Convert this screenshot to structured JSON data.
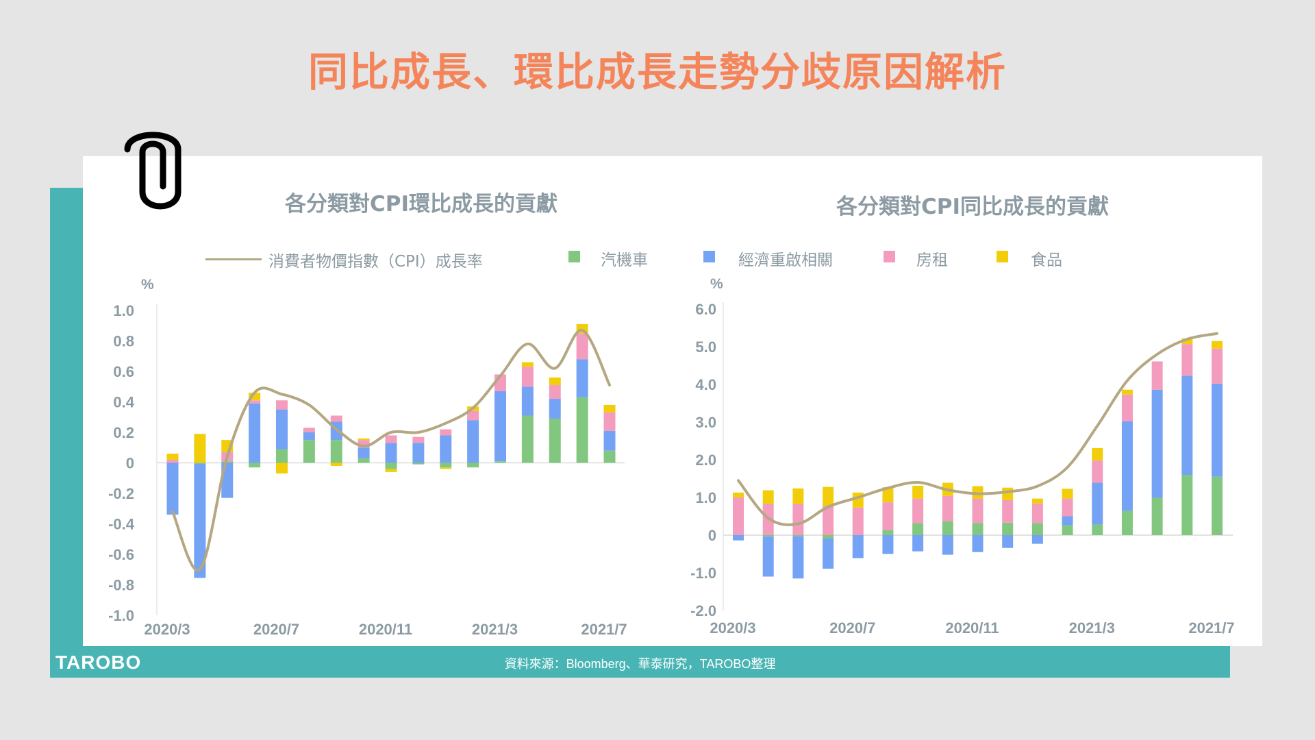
{
  "page": {
    "title": "同比成長、環比成長走勢分歧原因解析",
    "source": "資料來源：Bloomberg、華泰研究，TAROBO整理",
    "logo": "TAROBO"
  },
  "legend": {
    "line": "消費者物價指數（CPI）成長率",
    "items": [
      "汽機車",
      "經濟重啟相關",
      "房租",
      "食品"
    ]
  },
  "colors": {
    "汽機車": "#82c77f",
    "經濟重啟相關": "#74a2f5",
    "房租": "#f39cbd",
    "食品": "#f2cd0a",
    "line": "#b5a782",
    "title": "#f4845a",
    "teal": "#48b4b4",
    "axis_text": "#8c9ba3"
  },
  "chart_data": [
    {
      "type": "bar",
      "stacked": true,
      "title": "各分類對CPI環比成長的貢獻",
      "ylabel": "%",
      "ylim": [
        -1.0,
        1.0
      ],
      "yticks": [
        "1.0",
        "0.8",
        "0.6",
        "0.4",
        "0.2",
        "0",
        "-0.2",
        "-0.4",
        "-0.6",
        "-0.8",
        "-1.0"
      ],
      "ytick_values": [
        1.0,
        0.8,
        0.6,
        0.4,
        0.2,
        0,
        -0.2,
        -0.4,
        -0.6,
        -0.8,
        -1.0
      ],
      "categories": [
        "2020/3",
        "2020/4",
        "2020/5",
        "2020/6",
        "2020/7",
        "2020/8",
        "2020/9",
        "2020/10",
        "2020/11",
        "2020/12",
        "2021/1",
        "2021/2",
        "2021/3",
        "2021/4",
        "2021/5",
        "2021/6",
        "2021/7"
      ],
      "xtick_labels": [
        "2020/3",
        "2020/7",
        "2020/11",
        "2021/3",
        "2021/7"
      ],
      "xtick_indices": [
        0,
        4,
        8,
        12,
        16
      ],
      "grid": false,
      "series": [
        {
          "name": "汽機車",
          "values": [
            0,
            -0.005,
            0.01,
            -0.03,
            0.09,
            0.15,
            0.15,
            0.03,
            -0.04,
            -0.01,
            -0.03,
            -0.03,
            0.01,
            0.31,
            0.29,
            0.43,
            0.08
          ]
        },
        {
          "name": "經濟重啟相關",
          "values": [
            -0.34,
            -0.75,
            -0.23,
            0.39,
            0.26,
            0.05,
            0.12,
            0.07,
            0.13,
            0.13,
            0.18,
            0.28,
            0.46,
            0.19,
            0.13,
            0.25,
            0.13
          ]
        },
        {
          "name": "房租",
          "values": [
            0.02,
            0,
            0.06,
            0.02,
            0.06,
            0.03,
            0.04,
            0.05,
            0.05,
            0.04,
            0.04,
            0.06,
            0.11,
            0.13,
            0.09,
            0.17,
            0.12
          ]
        },
        {
          "name": "食品",
          "values": [
            0.04,
            0.19,
            0.08,
            0.05,
            -0.07,
            0,
            -0.02,
            0.01,
            -0.02,
            0,
            -0.01,
            0.03,
            0,
            0.03,
            0.05,
            0.06,
            0.05
          ]
        }
      ],
      "line": {
        "name": "消費者物價指數（CPI）成長率",
        "values": [
          -0.32,
          -0.7,
          0.04,
          0.46,
          0.45,
          0.38,
          0.22,
          0.11,
          0.2,
          0.2,
          0.26,
          0.36,
          0.57,
          0.78,
          0.62,
          0.87,
          0.51
        ]
      }
    },
    {
      "type": "bar",
      "stacked": true,
      "title": "各分類對CPI同比成長的貢獻",
      "ylabel": "%",
      "ylim": [
        -2.0,
        6.0
      ],
      "yticks": [
        "6.0",
        "5.0",
        "4.0",
        "3.0",
        "2.0",
        "1.0",
        "0",
        "-1.0",
        "-2.0"
      ],
      "ytick_values": [
        6,
        5,
        4,
        3,
        2,
        1,
        0,
        -1,
        -2
      ],
      "categories": [
        "2020/3",
        "2020/4",
        "2020/5",
        "2020/6",
        "2020/7",
        "2020/8",
        "2020/9",
        "2020/10",
        "2020/11",
        "2020/12",
        "2021/1",
        "2021/2",
        "2021/3",
        "2021/4",
        "2021/5",
        "2021/6",
        "2021/7"
      ],
      "xtick_labels": [
        "2020/3",
        "2020/7",
        "2020/11",
        "2021/3",
        "2021/7"
      ],
      "xtick_indices": [
        0,
        4,
        8,
        12,
        16
      ],
      "grid": false,
      "series": [
        {
          "name": "汽機車",
          "values": [
            0,
            -0.04,
            -0.03,
            -0.09,
            0,
            0.13,
            0.32,
            0.37,
            0.32,
            0.33,
            0.32,
            0.26,
            0.28,
            0.64,
            0.99,
            1.6,
            1.55
          ]
        },
        {
          "name": "經濟重啟相關",
          "values": [
            -0.14,
            -1.06,
            -1.12,
            -0.8,
            -0.61,
            -0.5,
            -0.43,
            -0.52,
            -0.45,
            -0.34,
            -0.23,
            0.24,
            1.11,
            2.38,
            2.87,
            2.63,
            2.47
          ]
        },
        {
          "name": "房租",
          "values": [
            1.0,
            0.83,
            0.83,
            0.78,
            0.73,
            0.74,
            0.65,
            0.67,
            0.65,
            0.6,
            0.52,
            0.47,
            0.59,
            0.71,
            0.75,
            0.84,
            0.93
          ]
        },
        {
          "name": "食品",
          "values": [
            0.13,
            0.36,
            0.41,
            0.5,
            0.4,
            0.4,
            0.34,
            0.35,
            0.33,
            0.33,
            0.13,
            0.26,
            0.33,
            0.13,
            0,
            0.15,
            0.2
          ]
        }
      ],
      "line": {
        "name": "消費者物價指數（CPI）成長率",
        "values": [
          1.45,
          0.45,
          0.3,
          0.75,
          1.0,
          1.25,
          1.4,
          1.2,
          1.1,
          1.15,
          1.3,
          1.8,
          2.9,
          4.1,
          4.8,
          5.2,
          5.35
        ]
      }
    }
  ]
}
